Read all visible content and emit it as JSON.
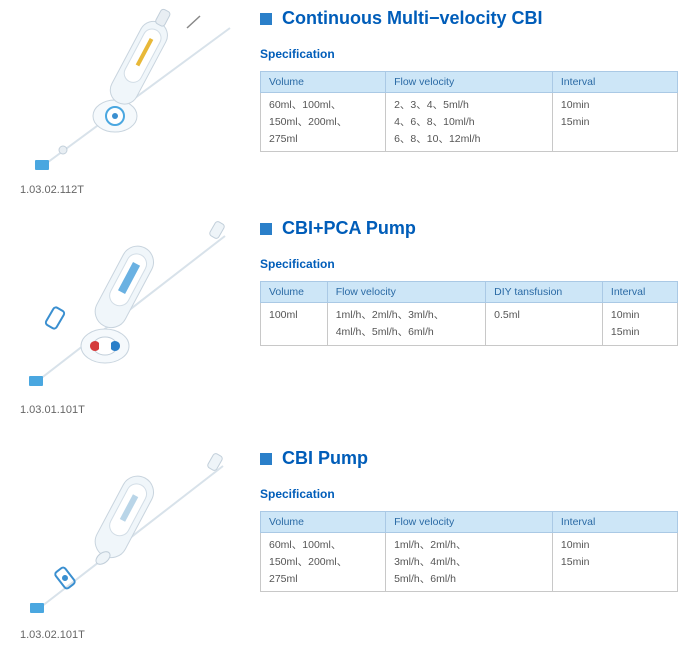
{
  "colors": {
    "accent": "#005db9",
    "square": "#2a7fc9",
    "th_bg": "#cde6f7",
    "th_border": "#aac9e5",
    "td_border": "#c8c8c8",
    "text": "#555"
  },
  "spec_label": "Specification",
  "products": [
    {
      "code": "1.03.02.112T",
      "title": "Continuous Multi−velocity CBI",
      "table": {
        "columns": [
          "Volume",
          "Flow velocity",
          "Interval"
        ],
        "widths": [
          "30%",
          "40%",
          "30%"
        ],
        "rows": [
          [
            "60ml、100ml、\n150ml、200ml、\n275ml",
            "2、3、4、5ml/h\n4、6、8、10ml/h\n6、8、10、12ml/h",
            "10min\n15min"
          ]
        ]
      }
    },
    {
      "code": "1.03.01.101T",
      "title": "CBI+PCA Pump",
      "table": {
        "columns": [
          "Volume",
          "Flow velocity",
          "DIY tansfusion",
          "Interval"
        ],
        "widths": [
          "16%",
          "38%",
          "28%",
          "18%"
        ],
        "rows": [
          [
            "100ml",
            "1ml/h、2ml/h、3ml/h、\n4ml/h、5ml/h、6ml/h",
            "0.5ml",
            "10min\n15min"
          ]
        ]
      }
    },
    {
      "code": "1.03.02.101T",
      "title": "CBI  Pump",
      "table": {
        "columns": [
          "Volume",
          "Flow velocity",
          "Interval"
        ],
        "widths": [
          "30%",
          "40%",
          "30%"
        ],
        "rows": [
          [
            "60ml、100ml、\n150ml、200ml、\n275ml",
            "1ml/h、2ml/h、\n3ml/h、4ml/h、\n5ml/h、6ml/h",
            "10min\n15min"
          ]
        ]
      }
    }
  ]
}
